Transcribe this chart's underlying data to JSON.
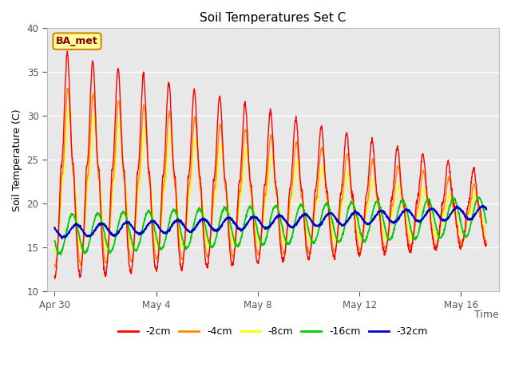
{
  "title": "Soil Temperatures Set C",
  "xlabel": "Time",
  "ylabel": "Soil Temperature (C)",
  "ylim": [
    10,
    40
  ],
  "xlim_days": [
    -0.3,
    17.5
  ],
  "plot_bg_color": "#e8e8e8",
  "series_colors": {
    "-2cm": "#ff0000",
    "-4cm": "#ff8800",
    "-8cm": "#ffff00",
    "-16cm": "#00cc00",
    "-32cm": "#0000cc"
  },
  "annotation_text": "BA_met",
  "annotation_bg": "#ffff99",
  "annotation_border": "#cc8800",
  "annotation_text_color": "#880000",
  "grid_color": "#ffffff",
  "tick_labels_x": [
    "Apr 30",
    "May 4",
    "May 8",
    "May 12",
    "May 16"
  ],
  "tick_positions_x": [
    0,
    4,
    8,
    12,
    16
  ],
  "tick_labels_y": [
    10,
    15,
    20,
    25,
    30,
    35,
    40
  ],
  "n_points": 1700,
  "duration_days": 17.0
}
